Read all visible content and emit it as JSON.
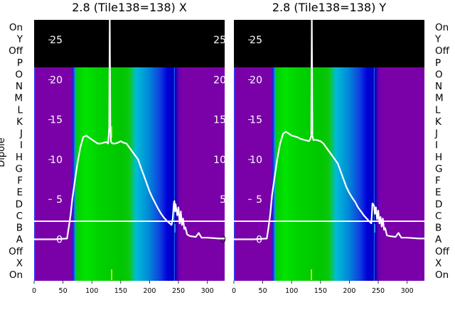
{
  "chart_data": [
    {
      "type": "heatmap",
      "title": "2.8 (Tile138=138) X",
      "ylabel": "Dipole",
      "x_ticks": [
        0,
        50,
        100,
        150,
        200,
        250,
        300
      ],
      "xlim": [
        0,
        330
      ],
      "dipole_labels_left": [
        "On",
        "Y",
        "Off",
        "P",
        "O",
        "N",
        "M",
        "L",
        "K",
        "J",
        "I",
        "H",
        "G",
        "F",
        "E",
        "D",
        "C",
        "B",
        "A",
        "Off",
        "X",
        "On"
      ],
      "overlay_ticks": [
        0,
        5,
        10,
        15,
        20,
        25
      ],
      "overlay_ylim": [
        -5.2,
        27.5
      ],
      "spectrum": {
        "x": [
          0,
          35,
          57,
          60,
          63,
          66,
          70,
          75,
          80,
          85,
          90,
          100,
          110,
          115,
          120,
          125,
          128,
          130,
          131,
          132,
          133,
          134,
          136,
          140,
          145,
          150,
          155,
          160,
          165,
          170,
          175,
          180,
          185,
          190,
          195,
          200,
          205,
          210,
          215,
          220,
          225,
          230,
          235,
          238,
          240,
          242,
          243,
          244,
          245,
          248,
          250,
          252,
          254,
          256,
          258,
          260,
          262,
          265,
          270,
          280,
          285,
          290,
          300,
          320,
          330
        ],
        "y": [
          0,
          0,
          0.1,
          1.5,
          3,
          5,
          7,
          9.5,
          11.5,
          12.8,
          13,
          12.5,
          12,
          12,
          12.1,
          12.2,
          12,
          14,
          29,
          14,
          12.3,
          12.1,
          12,
          12,
          12.1,
          12.3,
          12.1,
          12,
          11.5,
          11,
          10.5,
          10,
          9,
          8,
          7,
          6,
          5.2,
          4.5,
          3.8,
          3.2,
          2.7,
          2.3,
          2,
          1.8,
          2.5,
          4.5,
          4.8,
          3.5,
          4.4,
          3,
          4,
          2,
          3.5,
          1.8,
          2.6,
          1.3,
          1.5,
          0.6,
          0.4,
          0.3,
          0.8,
          0.2,
          0.2,
          0.1,
          0.1
        ]
      }
    },
    {
      "type": "heatmap",
      "title": "2.8 (Tile138=138) Y",
      "x_ticks": [
        0,
        50,
        100,
        150,
        200,
        250,
        300
      ],
      "xlim": [
        0,
        330
      ],
      "dipole_labels_right": [
        "On",
        "Y",
        "Off",
        "P",
        "O",
        "N",
        "M",
        "L",
        "K",
        "J",
        "I",
        "H",
        "G",
        "F",
        "E",
        "D",
        "C",
        "B",
        "A",
        "Off",
        "X",
        "On"
      ],
      "overlay_ticks": [
        0,
        5,
        10,
        15,
        20,
        25
      ],
      "overlay_ylim": [
        -5.2,
        27.5
      ],
      "spectrum": {
        "x": [
          0,
          35,
          57,
          60,
          63,
          66,
          70,
          75,
          80,
          85,
          90,
          100,
          110,
          115,
          120,
          125,
          130,
          132,
          134,
          135,
          136,
          137,
          138,
          140,
          145,
          150,
          155,
          160,
          165,
          170,
          175,
          180,
          185,
          190,
          195,
          200,
          205,
          210,
          215,
          220,
          225,
          230,
          235,
          238,
          240,
          243,
          244,
          246,
          248,
          250,
          252,
          254,
          256,
          258,
          260,
          262,
          265,
          270,
          280,
          285,
          290,
          300,
          320,
          330
        ],
        "y": [
          0,
          0,
          0.1,
          1.5,
          3.2,
          5.5,
          7.5,
          10,
          12,
          13.2,
          13.5,
          13,
          12.8,
          12.6,
          12.5,
          12.4,
          12.3,
          12.5,
          13,
          29,
          13,
          12.6,
          12.4,
          12.5,
          12.4,
          12.3,
          12,
          11.5,
          11,
          10.5,
          10,
          9.5,
          8.5,
          7.5,
          6.5,
          5.8,
          5.2,
          4.7,
          4,
          3.5,
          3,
          2.6,
          2.2,
          2,
          4.5,
          4.2,
          3.2,
          4,
          2.5,
          3.6,
          2,
          2.8,
          1.6,
          2.6,
          1.2,
          1.4,
          0.5,
          0.4,
          0.3,
          0.8,
          0.2,
          0.2,
          0.1,
          0.1
        ]
      }
    }
  ]
}
